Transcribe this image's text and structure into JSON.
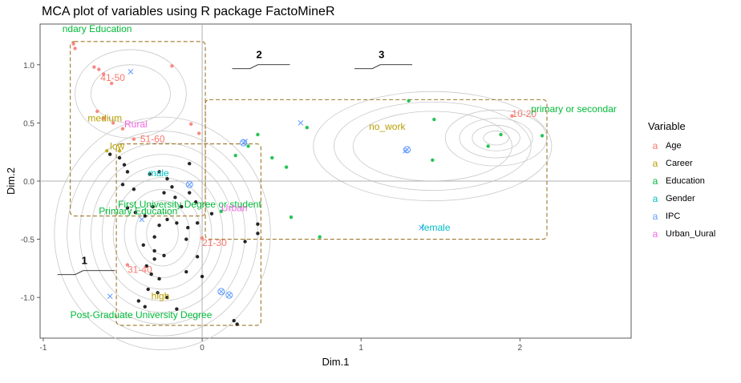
{
  "chart_data": {
    "type": "scatter",
    "title": "MCA plot of variables using R package FactoMineR",
    "xlabel": "Dim.1",
    "ylabel": "Dim.2",
    "xlim": [
      -1.02,
      2.7
    ],
    "ylim": [
      -1.35,
      1.35
    ],
    "x_ticks": [
      -1,
      0,
      1,
      2
    ],
    "y_ticks": [
      -1.0,
      -0.5,
      0.0,
      0.5,
      1.0
    ],
    "x_tick_labels": [
      "-1",
      "0",
      "1",
      "2"
    ],
    "y_tick_labels": [
      "-1.0",
      "-0.5",
      "0.0",
      "0.5",
      "1.0"
    ],
    "grid": true,
    "legend_placement": "right",
    "legend_title": "Variable",
    "series": [
      {
        "name": "Age",
        "color": "#F8766D",
        "symbol": "a"
      },
      {
        "name": "Career",
        "color": "#B79F00",
        "symbol": "a"
      },
      {
        "name": "Education",
        "color": "#00BA38",
        "symbol": "a"
      },
      {
        "name": "Gender",
        "color": "#00BFC4",
        "symbol": "a"
      },
      {
        "name": "IPC",
        "color": "#619CFF",
        "symbol": "a"
      },
      {
        "name": "Urban_Uural",
        "color": "#F564E3",
        "symbol": "a"
      }
    ],
    "category_labels": [
      {
        "text": "ndary Education",
        "series": "Education",
        "x": -0.88,
        "y": 1.31
      },
      {
        "text": "41-50",
        "series": "Age",
        "x": -0.64,
        "y": 0.89
      },
      {
        "text": "medium",
        "series": "Career",
        "x": -0.72,
        "y": 0.54
      },
      {
        "text": "Rural",
        "series": "Urban_Uural",
        "x": -0.49,
        "y": 0.49
      },
      {
        "text": "51-60",
        "series": "Age",
        "x": -0.39,
        "y": 0.36
      },
      {
        "text": "low",
        "series": "Career",
        "x": -0.58,
        "y": 0.3
      },
      {
        "text": "male",
        "series": "Gender",
        "x": -0.34,
        "y": 0.07
      },
      {
        "text": "First University Degree or student",
        "series": "Education",
        "x": -0.53,
        "y": -0.2
      },
      {
        "text": "Primary Education",
        "series": "Education",
        "x": -0.65,
        "y": -0.26
      },
      {
        "text": "Urban",
        "series": "Urban_Uural",
        "x": 0.12,
        "y": -0.23
      },
      {
        "text": "21-30",
        "series": "Age",
        "x": 0.0,
        "y": -0.53
      },
      {
        "text": "31-40",
        "series": "Age",
        "x": -0.47,
        "y": -0.76
      },
      {
        "text": "high",
        "series": "Career",
        "x": -0.32,
        "y": -0.99
      },
      {
        "text": "Post-Graduate University Degree",
        "series": "Education",
        "x": -0.83,
        "y": -1.15
      },
      {
        "text": "no_work",
        "series": "Career",
        "x": 1.05,
        "y": 0.47
      },
      {
        "text": "female",
        "series": "Gender",
        "x": 1.38,
        "y": -0.4
      },
      {
        "text": "10-20",
        "series": "Age",
        "x": 1.95,
        "y": 0.58
      },
      {
        "text": "primary or secondar",
        "series": "Education",
        "x": 2.07,
        "y": 0.62
      }
    ],
    "ipc_markers": [
      {
        "x": -0.45,
        "y": 0.94,
        "shape": "x"
      },
      {
        "x": -0.58,
        "y": -0.99,
        "shape": "x"
      },
      {
        "x": -0.38,
        "y": -0.33,
        "shape": "x"
      },
      {
        "x": 0.27,
        "y": 0.34,
        "shape": "x"
      },
      {
        "x": 1.28,
        "y": 0.26,
        "shape": "x"
      },
      {
        "x": 1.38,
        "y": -0.4,
        "shape": "x"
      },
      {
        "x": 0.62,
        "y": 0.5,
        "shape": "x"
      },
      {
        "x": -0.08,
        "y": -0.03,
        "shape": "circle-x"
      },
      {
        "x": 0.12,
        "y": -0.95,
        "shape": "circle-x"
      },
      {
        "x": 0.17,
        "y": -0.98,
        "shape": "circle-x"
      },
      {
        "x": 1.29,
        "y": 0.27,
        "shape": "circle-x"
      },
      {
        "x": 0.26,
        "y": 0.33,
        "shape": "circle-x"
      }
    ],
    "points": [
      {
        "x": -0.81,
        "y": 1.18,
        "series": "Age"
      },
      {
        "x": -0.8,
        "y": 1.14,
        "series": "Age"
      },
      {
        "x": -0.68,
        "y": 0.98,
        "series": "Age"
      },
      {
        "x": -0.65,
        "y": 0.96,
        "series": "Age"
      },
      {
        "x": -0.62,
        "y": 0.92,
        "series": "Age"
      },
      {
        "x": -0.57,
        "y": 0.84,
        "series": "Age"
      },
      {
        "x": -0.66,
        "y": 0.6,
        "series": "Age"
      },
      {
        "x": -0.62,
        "y": 0.54,
        "series": "Age"
      },
      {
        "x": -0.56,
        "y": 0.5,
        "series": "Age"
      },
      {
        "x": -0.5,
        "y": 0.45,
        "series": "Age"
      },
      {
        "x": -0.19,
        "y": 0.99,
        "series": "Age"
      },
      {
        "x": -0.07,
        "y": 0.49,
        "series": "Age"
      },
      {
        "x": -0.43,
        "y": 0.36,
        "series": "Age"
      },
      {
        "x": -0.02,
        "y": 0.41,
        "series": "Age"
      },
      {
        "x": 0.0,
        "y": -0.49,
        "series": "Age"
      },
      {
        "x": -0.47,
        "y": -0.72,
        "series": "Age"
      },
      {
        "x": 1.95,
        "y": 0.56,
        "series": "Age"
      },
      {
        "x": -0.6,
        "y": 0.26,
        "series": "Career"
      },
      {
        "x": -0.52,
        "y": 0.26,
        "series": "Career"
      },
      {
        "x": 0.29,
        "y": 0.3,
        "series": "Education"
      },
      {
        "x": 0.35,
        "y": 0.4,
        "series": "Education"
      },
      {
        "x": 0.21,
        "y": 0.22,
        "series": "Education"
      },
      {
        "x": 0.44,
        "y": 0.2,
        "series": "Education"
      },
      {
        "x": 0.53,
        "y": 0.12,
        "series": "Education"
      },
      {
        "x": 0.66,
        "y": 0.46,
        "series": "Education"
      },
      {
        "x": 0.56,
        "y": -0.31,
        "series": "Education"
      },
      {
        "x": 0.74,
        "y": -0.48,
        "series": "Education"
      },
      {
        "x": 0.12,
        "y": -0.26,
        "series": "Education"
      },
      {
        "x": 1.3,
        "y": 0.69,
        "series": "Education"
      },
      {
        "x": 1.46,
        "y": 0.53,
        "series": "Education"
      },
      {
        "x": 1.45,
        "y": 0.18,
        "series": "Education"
      },
      {
        "x": 1.88,
        "y": 0.4,
        "series": "Education"
      },
      {
        "x": 1.8,
        "y": 0.3,
        "series": "Education"
      },
      {
        "x": 2.14,
        "y": 0.39,
        "series": "Education"
      },
      {
        "x": -0.58,
        "y": 0.23,
        "series": "black"
      },
      {
        "x": -0.52,
        "y": 0.2,
        "series": "black"
      },
      {
        "x": -0.49,
        "y": 0.14,
        "series": "black"
      },
      {
        "x": -0.47,
        "y": 0.08,
        "series": "black"
      },
      {
        "x": -0.5,
        "y": -0.03,
        "series": "black"
      },
      {
        "x": -0.43,
        "y": -0.07,
        "series": "black"
      },
      {
        "x": -0.33,
        "y": 0.06,
        "series": "black"
      },
      {
        "x": -0.27,
        "y": 0.08,
        "series": "black"
      },
      {
        "x": -0.22,
        "y": 0.02,
        "series": "black"
      },
      {
        "x": -0.19,
        "y": -0.05,
        "series": "black"
      },
      {
        "x": -0.24,
        "y": -0.1,
        "series": "black"
      },
      {
        "x": -0.17,
        "y": -0.14,
        "series": "black"
      },
      {
        "x": -0.13,
        "y": -0.22,
        "series": "black"
      },
      {
        "x": -0.08,
        "y": -0.1,
        "series": "black"
      },
      {
        "x": -0.04,
        "y": -0.18,
        "series": "black"
      },
      {
        "x": -0.31,
        "y": -0.22,
        "series": "black"
      },
      {
        "x": -0.36,
        "y": -0.3,
        "series": "black"
      },
      {
        "x": -0.42,
        "y": -0.27,
        "series": "black"
      },
      {
        "x": -0.47,
        "y": -0.23,
        "series": "black"
      },
      {
        "x": -0.27,
        "y": -0.38,
        "series": "black"
      },
      {
        "x": -0.22,
        "y": -0.33,
        "series": "black"
      },
      {
        "x": -0.16,
        "y": -0.36,
        "series": "black"
      },
      {
        "x": -0.09,
        "y": -0.4,
        "series": "black"
      },
      {
        "x": -0.03,
        "y": -0.36,
        "series": "black"
      },
      {
        "x": -0.1,
        "y": -0.5,
        "series": "black"
      },
      {
        "x": -0.3,
        "y": -0.48,
        "series": "black"
      },
      {
        "x": -0.37,
        "y": -0.55,
        "series": "black"
      },
      {
        "x": -0.3,
        "y": -0.6,
        "series": "black"
      },
      {
        "x": -0.24,
        "y": -0.64,
        "series": "black"
      },
      {
        "x": -0.3,
        "y": -0.67,
        "series": "black"
      },
      {
        "x": -0.35,
        "y": -0.73,
        "series": "black"
      },
      {
        "x": -0.32,
        "y": -0.8,
        "series": "black"
      },
      {
        "x": -0.27,
        "y": -0.84,
        "series": "black"
      },
      {
        "x": -0.1,
        "y": -0.78,
        "series": "black"
      },
      {
        "x": -0.03,
        "y": -0.65,
        "series": "black"
      },
      {
        "x": 0.0,
        "y": -0.82,
        "series": "black"
      },
      {
        "x": -0.34,
        "y": -0.93,
        "series": "black"
      },
      {
        "x": -0.28,
        "y": -0.96,
        "series": "black"
      },
      {
        "x": -0.22,
        "y": -1.0,
        "series": "black"
      },
      {
        "x": -0.4,
        "y": -1.03,
        "series": "black"
      },
      {
        "x": -0.36,
        "y": -1.08,
        "series": "black"
      },
      {
        "x": -0.16,
        "y": -1.1,
        "series": "black"
      },
      {
        "x": 0.2,
        "y": -1.2,
        "series": "black"
      },
      {
        "x": 0.22,
        "y": -1.23,
        "series": "black"
      },
      {
        "x": 0.35,
        "y": -0.37,
        "series": "black"
      },
      {
        "x": 0.35,
        "y": -0.45,
        "series": "black"
      },
      {
        "x": 0.27,
        "y": -0.52,
        "series": "black"
      },
      {
        "x": 0.06,
        "y": -0.28,
        "series": "black"
      },
      {
        "x": -0.08,
        "y": 0.15,
        "series": "black"
      }
    ],
    "groups": [
      {
        "label": "1",
        "x0": -0.83,
        "x1": 0.02,
        "y0": -0.3,
        "y1": 1.2
      },
      {
        "label": "2",
        "x0": -0.54,
        "x1": 0.37,
        "y0": -1.24,
        "y1": 0.32
      },
      {
        "label": "3",
        "x0": 0.02,
        "x1": 2.17,
        "y0": -0.5,
        "y1": 0.7
      }
    ],
    "group_callouts": [
      {
        "label": "1",
        "x": -0.8,
        "y": -0.68
      },
      {
        "label": "2",
        "x": 0.3,
        "y": 1.09
      },
      {
        "label": "3",
        "x": 1.07,
        "y": 1.09
      }
    ]
  }
}
